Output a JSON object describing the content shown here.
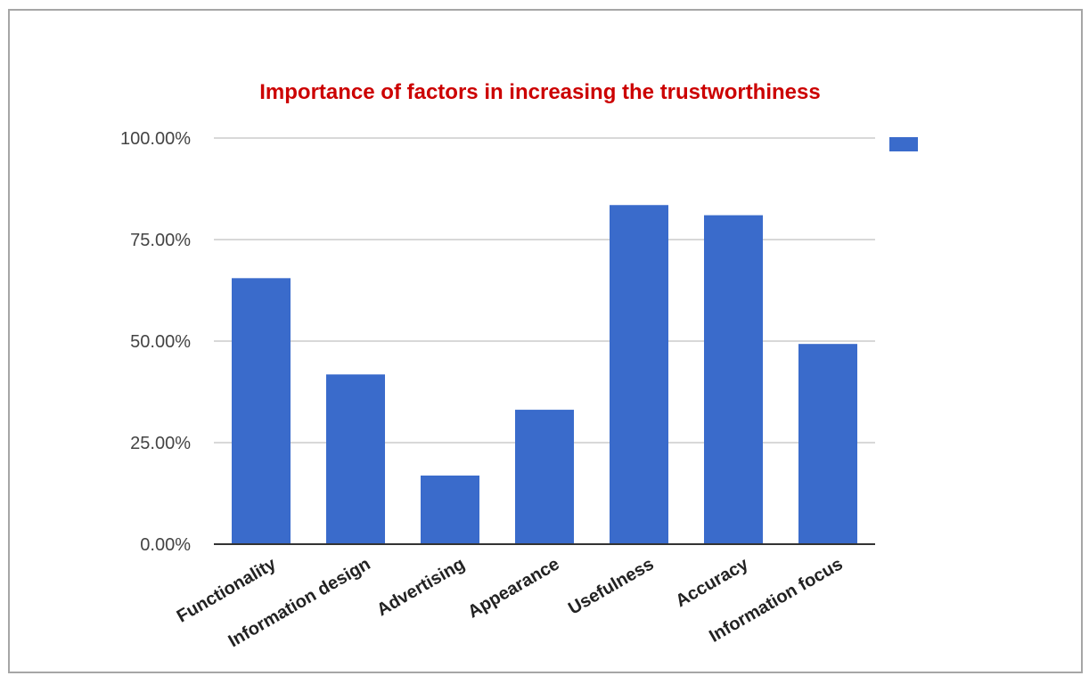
{
  "chart_data": {
    "type": "bar",
    "title": "Importance of factors in increasing the trustworthiness",
    "categories": [
      "Functionality",
      "Information design",
      "Advertising",
      "Appearance",
      "Usefulness",
      "Accuracy",
      "Information focus"
    ],
    "series": [
      {
        "values": [
          65.5,
          41.8,
          16.9,
          33.1,
          83.5,
          81.0,
          49.3
        ]
      }
    ],
    "yticks": [
      "0.00%",
      "25.00%",
      "50.00%",
      "75.00%",
      "100.00%"
    ],
    "ylim": [
      0,
      100
    ],
    "grid": true,
    "legend": "top-right",
    "colors": {
      "bar": "#3a6bcb",
      "title": "#cc0000",
      "grid": "#cccccc",
      "axis": "#333333"
    }
  }
}
